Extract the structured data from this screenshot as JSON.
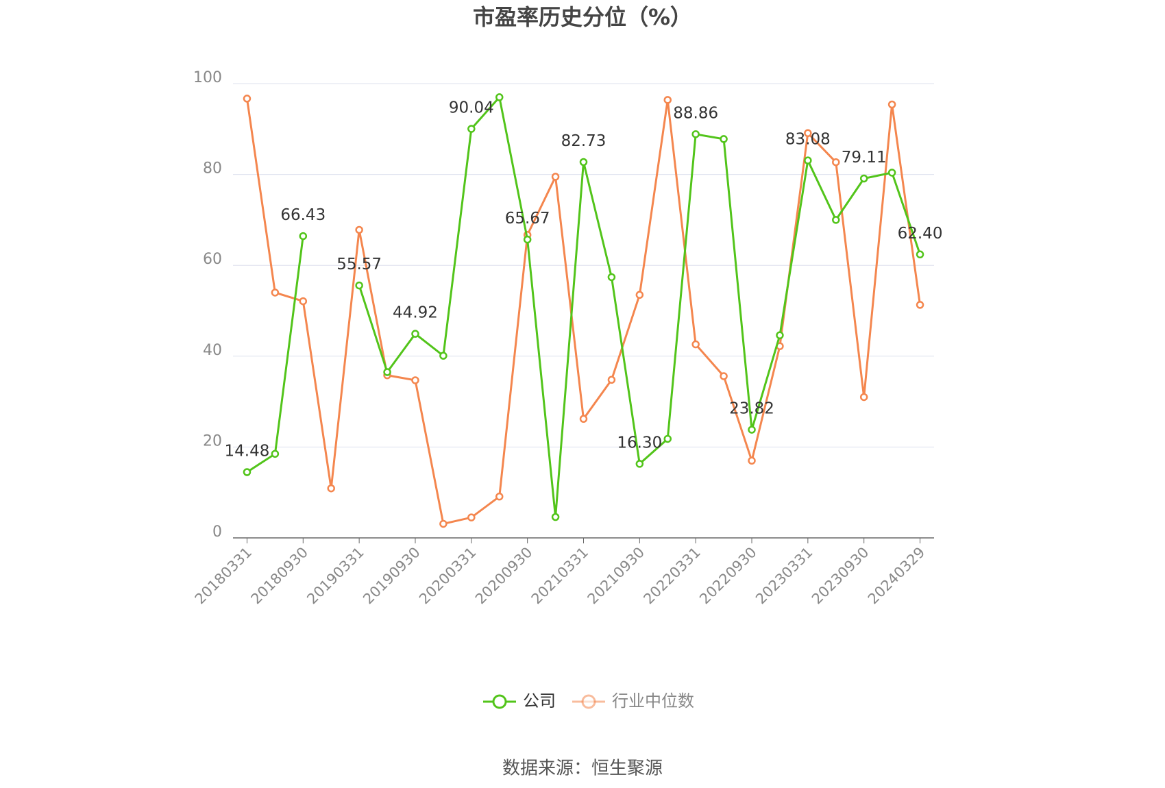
{
  "chart_data": {
    "type": "line",
    "title": "市盈率历史分位（%）",
    "categories": [
      "20180331",
      null,
      "20180930",
      null,
      "20190331",
      null,
      "20190930",
      null,
      "20200331",
      null,
      "20200930",
      null,
      "20210331",
      null,
      "20210930",
      null,
      "20220331",
      null,
      "20220930",
      null,
      "20230331",
      null,
      "20230930",
      null,
      "20240329"
    ],
    "series": [
      {
        "name": "公司",
        "color": "#52c41a",
        "values": [
          14.48,
          18.5,
          66.43,
          null,
          55.57,
          36.5,
          44.92,
          40.1,
          90.04,
          97.0,
          65.67,
          4.6,
          82.73,
          57.4,
          16.3,
          21.8,
          88.86,
          87.8,
          23.82,
          44.6,
          83.08,
          70.0,
          79.11,
          80.4,
          62.4
        ],
        "value_labels": [
          "14.48",
          null,
          "66.43",
          null,
          "55.57",
          null,
          "44.92",
          null,
          "90.04",
          null,
          "65.67",
          null,
          "82.73",
          null,
          "16.30",
          null,
          "88.86",
          null,
          "23.82",
          null,
          "83.08",
          null,
          "79.11",
          null,
          "62.40"
        ]
      },
      {
        "name": "行业中位数",
        "color": "#f4864e",
        "values": [
          96.7,
          54.0,
          52.1,
          10.9,
          67.8,
          35.8,
          34.7,
          3.1,
          4.5,
          9.1,
          66.7,
          79.5,
          26.2,
          34.8,
          53.5,
          96.4,
          42.6,
          35.6,
          17.0,
          42.2,
          89.1,
          82.7,
          31.0,
          95.4,
          51.3
        ]
      }
    ],
    "ylim": [
      0,
      100
    ],
    "yticks": [
      0,
      20,
      40,
      60,
      80,
      100
    ],
    "grid": true,
    "source": "数据来源：恒生聚源"
  }
}
